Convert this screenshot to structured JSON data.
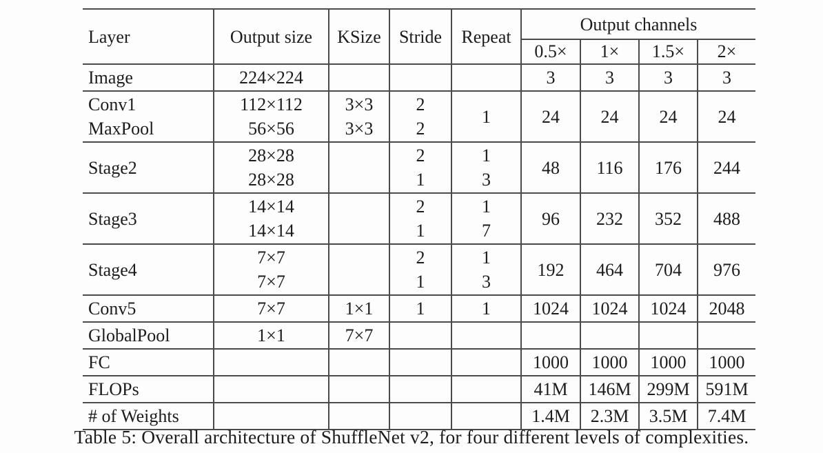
{
  "table": {
    "header": {
      "layer": "Layer",
      "output_size": "Output size",
      "ksize": "KSize",
      "stride": "Stride",
      "repeat": "Repeat",
      "output_channels": "Output channels",
      "channel_cols": [
        "0.5×",
        "1×",
        "1.5×",
        "2×"
      ]
    },
    "rows": [
      {
        "layer": [
          "Image"
        ],
        "output_size": [
          "224×224"
        ],
        "ksize": [],
        "stride": [],
        "repeat": [],
        "channels": [
          "3",
          "3",
          "3",
          "3"
        ]
      },
      {
        "layer": [
          "Conv1",
          "MaxPool"
        ],
        "output_size": [
          "112×112",
          "56×56"
        ],
        "ksize": [
          "3×3",
          "3×3"
        ],
        "stride": [
          "2",
          "2"
        ],
        "repeat": [
          "1"
        ],
        "channels": [
          "24",
          "24",
          "24",
          "24"
        ]
      },
      {
        "layer": [
          "Stage2"
        ],
        "output_size": [
          "28×28",
          "28×28"
        ],
        "ksize": [],
        "stride": [
          "2",
          "1"
        ],
        "repeat": [
          "1",
          "3"
        ],
        "channels": [
          "48",
          "116",
          "176",
          "244"
        ]
      },
      {
        "layer": [
          "Stage3"
        ],
        "output_size": [
          "14×14",
          "14×14"
        ],
        "ksize": [],
        "stride": [
          "2",
          "1"
        ],
        "repeat": [
          "1",
          "7"
        ],
        "channels": [
          "96",
          "232",
          "352",
          "488"
        ]
      },
      {
        "layer": [
          "Stage4"
        ],
        "output_size": [
          "7×7",
          "7×7"
        ],
        "ksize": [],
        "stride": [
          "2",
          "1"
        ],
        "repeat": [
          "1",
          "3"
        ],
        "channels": [
          "192",
          "464",
          "704",
          "976"
        ]
      },
      {
        "layer": [
          "Conv5"
        ],
        "output_size": [
          "7×7"
        ],
        "ksize": [
          "1×1"
        ],
        "stride": [
          "1"
        ],
        "repeat": [
          "1"
        ],
        "channels": [
          "1024",
          "1024",
          "1024",
          "2048"
        ]
      },
      {
        "layer": [
          "GlobalPool"
        ],
        "output_size": [
          "1×1"
        ],
        "ksize": [
          "7×7"
        ],
        "stride": [],
        "repeat": [],
        "channels": [
          "",
          "",
          "",
          ""
        ]
      },
      {
        "layer": [
          "FC"
        ],
        "output_size": [],
        "ksize": [],
        "stride": [],
        "repeat": [],
        "channels": [
          "1000",
          "1000",
          "1000",
          "1000"
        ]
      },
      {
        "layer": [
          "FLOPs"
        ],
        "output_size": [],
        "ksize": [],
        "stride": [],
        "repeat": [],
        "channels": [
          "41M",
          "146M",
          "299M",
          "591M"
        ]
      },
      {
        "layer": [
          "# of Weights"
        ],
        "output_size": [],
        "ksize": [],
        "stride": [],
        "repeat": [],
        "channels": [
          "1.4M",
          "2.3M",
          "3.5M",
          "7.4M"
        ]
      }
    ]
  },
  "caption": "Table 5: Overall architecture of ShuffleNet v2, for four different levels of complexities."
}
